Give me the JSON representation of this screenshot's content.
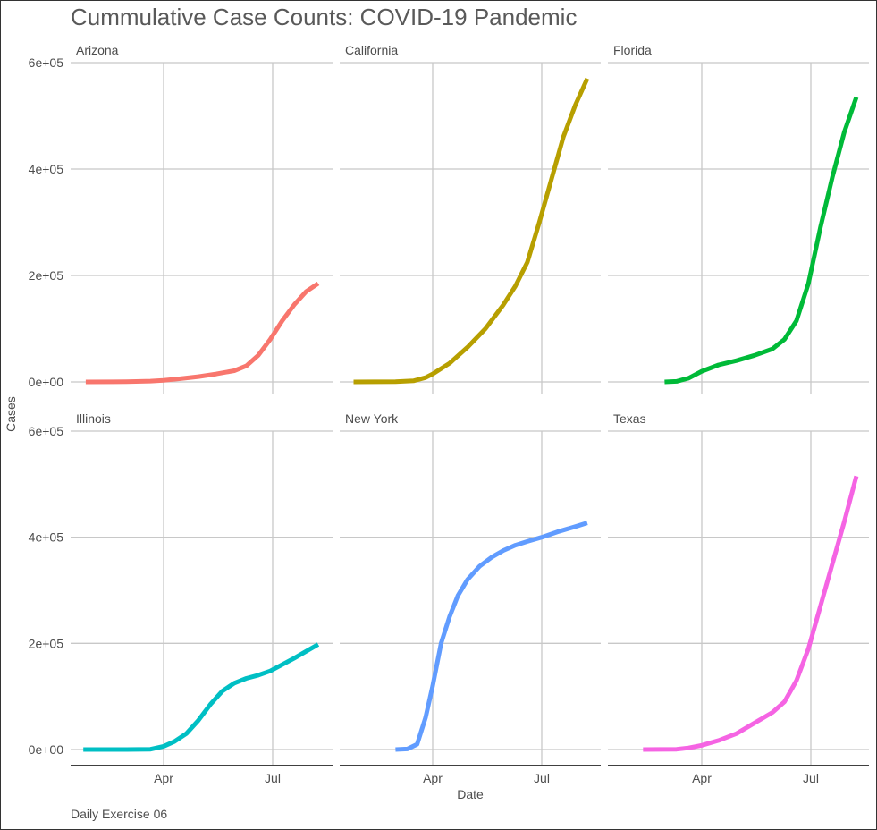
{
  "chart_data": {
    "type": "line",
    "title": "Cummulative Case Counts: COVID-19 Pandemic",
    "xlabel": "Date",
    "ylabel": "Cases",
    "caption": "Daily Exercise 06",
    "ylim": [
      0,
      600000
    ],
    "yticks": [
      0,
      200000,
      400000,
      600000
    ],
    "ytick_labels": [
      "0e+00",
      "2e+05",
      "4e+05",
      "6e+05"
    ],
    "xlim_day_of_year": [
      0,
      225
    ],
    "xticks": [
      {
        "label": "Apr",
        "day": 91
      },
      {
        "label": "Jul",
        "day": 182
      }
    ],
    "grid": true,
    "legend": "none",
    "facets": [
      {
        "name": "Arizona",
        "color": "#F8766D",
        "points": [
          [
            26,
            0
          ],
          [
            60,
            300
          ],
          [
            80,
            1500
          ],
          [
            91,
            3000
          ],
          [
            105,
            6000
          ],
          [
            120,
            10000
          ],
          [
            135,
            15000
          ],
          [
            150,
            21000
          ],
          [
            160,
            30000
          ],
          [
            170,
            50000
          ],
          [
            180,
            80000
          ],
          [
            190,
            115000
          ],
          [
            200,
            145000
          ],
          [
            210,
            170000
          ],
          [
            220,
            185000
          ]
        ]
      },
      {
        "name": "California",
        "color": "#B79F00",
        "points": [
          [
            25,
            0
          ],
          [
            60,
            500
          ],
          [
            75,
            2000
          ],
          [
            85,
            8000
          ],
          [
            91,
            15000
          ],
          [
            105,
            35000
          ],
          [
            120,
            65000
          ],
          [
            135,
            100000
          ],
          [
            150,
            145000
          ],
          [
            160,
            180000
          ],
          [
            170,
            225000
          ],
          [
            180,
            300000
          ],
          [
            190,
            380000
          ],
          [
            200,
            460000
          ],
          [
            210,
            520000
          ],
          [
            220,
            570000
          ]
        ]
      },
      {
        "name": "Florida",
        "color": "#00BA38",
        "points": [
          [
            60,
            0
          ],
          [
            70,
            1000
          ],
          [
            80,
            7000
          ],
          [
            91,
            20000
          ],
          [
            105,
            32000
          ],
          [
            120,
            40000
          ],
          [
            135,
            50000
          ],
          [
            150,
            62000
          ],
          [
            160,
            80000
          ],
          [
            170,
            115000
          ],
          [
            180,
            185000
          ],
          [
            190,
            290000
          ],
          [
            200,
            385000
          ],
          [
            210,
            470000
          ],
          [
            220,
            535000
          ]
        ]
      },
      {
        "name": "Illinois",
        "color": "#00BFC4",
        "points": [
          [
            24,
            0
          ],
          [
            60,
            0
          ],
          [
            80,
            500
          ],
          [
            91,
            6000
          ],
          [
            100,
            15000
          ],
          [
            110,
            30000
          ],
          [
            120,
            55000
          ],
          [
            130,
            85000
          ],
          [
            140,
            110000
          ],
          [
            150,
            125000
          ],
          [
            160,
            134000
          ],
          [
            170,
            140000
          ],
          [
            180,
            148000
          ],
          [
            190,
            160000
          ],
          [
            200,
            172000
          ],
          [
            210,
            185000
          ],
          [
            220,
            198000
          ]
        ]
      },
      {
        "name": "New York",
        "color": "#619CFF",
        "points": [
          [
            60,
            0
          ],
          [
            70,
            1000
          ],
          [
            78,
            10000
          ],
          [
            85,
            60000
          ],
          [
            91,
            120000
          ],
          [
            98,
            200000
          ],
          [
            105,
            250000
          ],
          [
            112,
            290000
          ],
          [
            120,
            320000
          ],
          [
            130,
            345000
          ],
          [
            140,
            362000
          ],
          [
            150,
            375000
          ],
          [
            160,
            385000
          ],
          [
            170,
            392000
          ],
          [
            182,
            400000
          ],
          [
            195,
            410000
          ],
          [
            210,
            420000
          ],
          [
            220,
            427000
          ]
        ]
      },
      {
        "name": "Texas",
        "color": "#F564E3",
        "points": [
          [
            42,
            0
          ],
          [
            70,
            500
          ],
          [
            80,
            3000
          ],
          [
            91,
            8000
          ],
          [
            105,
            17000
          ],
          [
            120,
            30000
          ],
          [
            135,
            50000
          ],
          [
            150,
            70000
          ],
          [
            160,
            90000
          ],
          [
            170,
            130000
          ],
          [
            180,
            190000
          ],
          [
            190,
            270000
          ],
          [
            200,
            350000
          ],
          [
            210,
            430000
          ],
          [
            220,
            515000
          ]
        ]
      }
    ]
  }
}
